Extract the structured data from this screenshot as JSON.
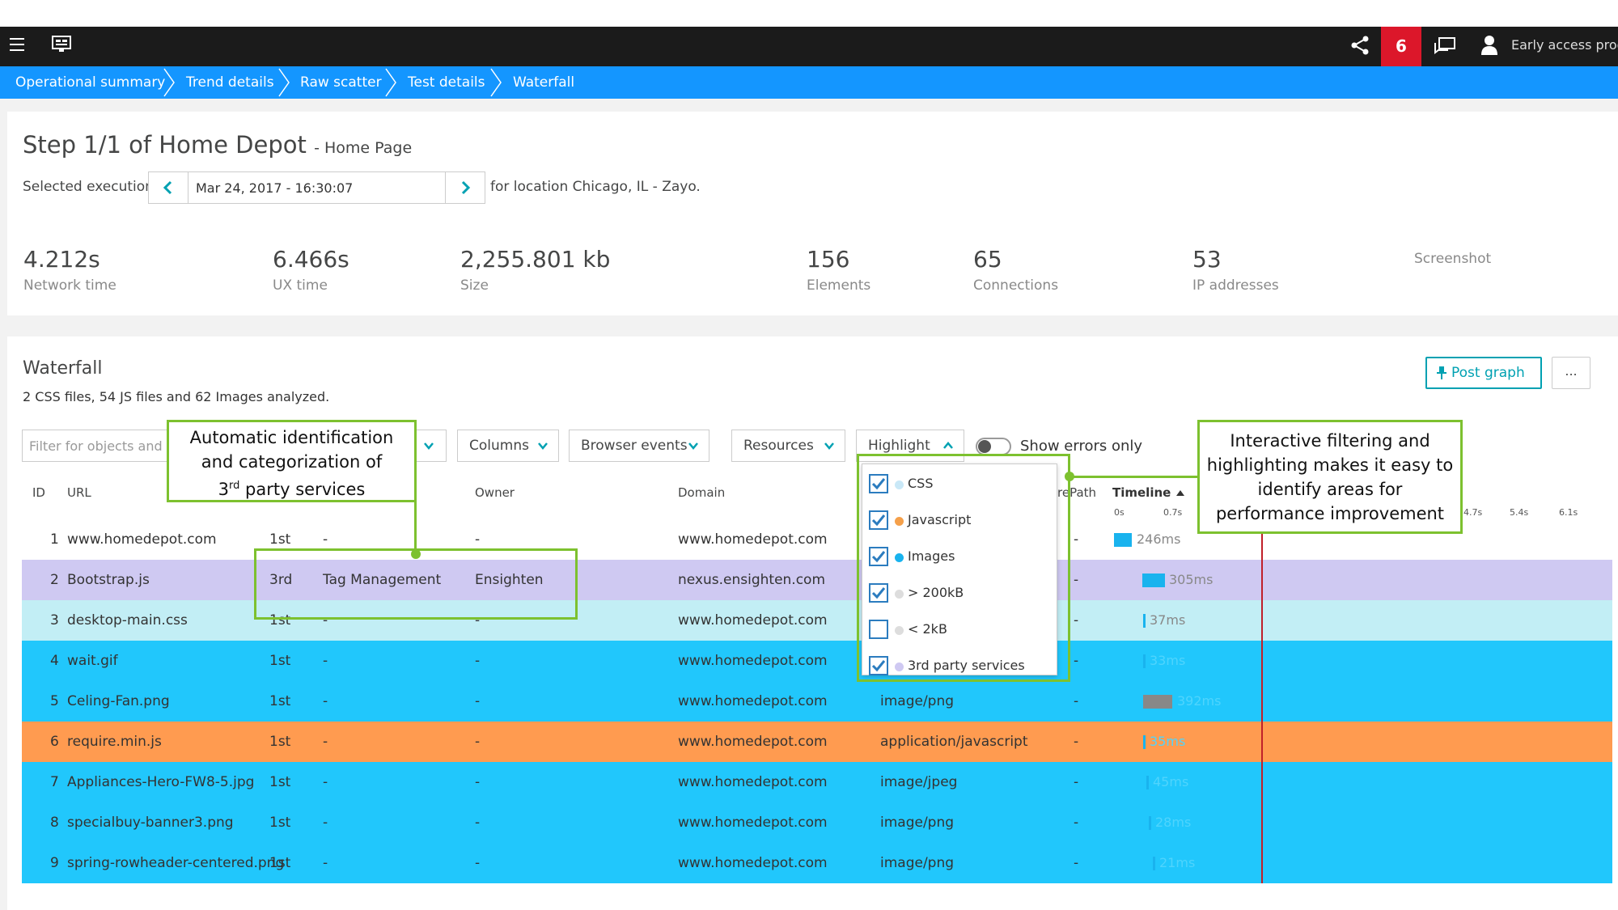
{
  "topbar": {
    "badge_count": "6",
    "early_access": "Early access progr"
  },
  "breadcrumb": [
    "Operational summary",
    "Trend details",
    "Raw scatter",
    "Test details",
    "Waterfall"
  ],
  "step": {
    "title": "Step 1/1 of Home Depot",
    "subtitle": "- Home Page",
    "selected_label": "Selected execution",
    "date": "Mar 24, 2017 - 16:30:07",
    "location": "for location Chicago, IL - Zayo."
  },
  "metrics": [
    {
      "value": "4.212s",
      "label": "Network time"
    },
    {
      "value": "6.466s",
      "label": "UX time"
    },
    {
      "value": "2,255.801 kb",
      "label": "Size"
    },
    {
      "value": "156",
      "label": "Elements"
    },
    {
      "value": "65",
      "label": "Connections"
    },
    {
      "value": "53",
      "label": "IP addresses"
    },
    {
      "value": "",
      "label": "Screenshot"
    }
  ],
  "waterfall": {
    "title": "Waterfall",
    "summary": "2 CSS files, 54 JS files and 62 Images analyzed.",
    "post_graph": "Post graph",
    "more": "...",
    "filter_placeholder": "Filter for objects and",
    "columns": "Columns",
    "browser_events": "Browser events",
    "resources": "Resources",
    "highlight": "Highlight",
    "show_errors": "Show errors only",
    "headers": {
      "id": "ID",
      "url": "URL",
      "owner": "Owner",
      "domain": "Domain",
      "purepath": "rePath",
      "timeline": "Timeline"
    },
    "ticks": [
      "0s",
      "0.7s",
      "4.7s",
      "5.4s",
      "6.1s"
    ],
    "rows": [
      {
        "id": "1",
        "url": "www.homedepot.com",
        "party": "1st",
        "category": "-",
        "owner": "-",
        "domain": "www.homedepot.com",
        "type": "",
        "pp": "-",
        "time": "246ms",
        "color": "#ffffff"
      },
      {
        "id": "2",
        "url": "Bootstrap.js",
        "party": "3rd",
        "category": "Tag Management",
        "owner": "Ensighten",
        "domain": "nexus.ensighten.com",
        "type": "",
        "pp": "-",
        "time": "305ms",
        "color": "#cfc9f2"
      },
      {
        "id": "3",
        "url": "desktop-main.css",
        "party": "1st",
        "category": "-",
        "owner": "-",
        "domain": "www.homedepot.com",
        "type": "",
        "pp": "-",
        "time": "37ms",
        "color": "#c2eef5"
      },
      {
        "id": "4",
        "url": "wait.gif",
        "party": "1st",
        "category": "-",
        "owner": "-",
        "domain": "www.homedepot.com",
        "type": "",
        "pp": "-",
        "time": "33ms",
        "color": "#21c7fc"
      },
      {
        "id": "5",
        "url": "Celing-Fan.png",
        "party": "1st",
        "category": "-",
        "owner": "-",
        "domain": "www.homedepot.com",
        "type": "image/png",
        "pp": "-",
        "time": "392ms",
        "color": "#21c7fc"
      },
      {
        "id": "6",
        "url": "require.min.js",
        "party": "1st",
        "category": "-",
        "owner": "-",
        "domain": "www.homedepot.com",
        "type": "application/javascript",
        "pp": "-",
        "time": "35ms",
        "color": "#ff9b50"
      },
      {
        "id": "7",
        "url": "Appliances-Hero-FW8-5.jpg",
        "party": "1st",
        "category": "-",
        "owner": "-",
        "domain": "www.homedepot.com",
        "type": "image/jpeg",
        "pp": "-",
        "time": "45ms",
        "color": "#21c7fc"
      },
      {
        "id": "8",
        "url": "specialbuy-banner3.png",
        "party": "1st",
        "category": "-",
        "owner": "-",
        "domain": "www.homedepot.com",
        "type": "image/png",
        "pp": "-",
        "time": "28ms",
        "color": "#21c7fc"
      },
      {
        "id": "9",
        "url": "spring-rowheader-centered.png",
        "party": "1st",
        "category": "-",
        "owner": "-",
        "domain": "www.homedepot.com",
        "type": "image/png",
        "pp": "-",
        "time": "21ms",
        "color": "#21c7fc"
      }
    ]
  },
  "highlight_options": [
    {
      "label": "CSS",
      "checked": true,
      "dot": "#c9e8f7"
    },
    {
      "label": "Javascript",
      "checked": true,
      "dot": "#f5a04a"
    },
    {
      "label": "Images",
      "checked": true,
      "dot": "#19b3ee"
    },
    {
      "label": "> 200kB",
      "checked": true,
      "dot": "#dddddd"
    },
    {
      "label": "< 2kB",
      "checked": false,
      "dot": "#dddddd"
    },
    {
      "label": "3rd party services",
      "checked": true,
      "dot": "#cfc9f2"
    }
  ],
  "callouts": {
    "left_line1": "Automatic identification",
    "left_line2": "and categorization of",
    "left_line3_sup": "rd",
    "left_line3_pre": "3",
    "left_line3_post": " party services",
    "right_line1": "Interactive filtering and",
    "right_line2": "highlighting makes it easy to",
    "right_line3": "identify areas for",
    "right_line4": "performance improvement"
  },
  "colors": {
    "accent": "#1496ff",
    "teal": "#00a1b2",
    "badge": "#dc172a",
    "callout": "#7dc12f",
    "timeline_line": "#c0202a"
  }
}
